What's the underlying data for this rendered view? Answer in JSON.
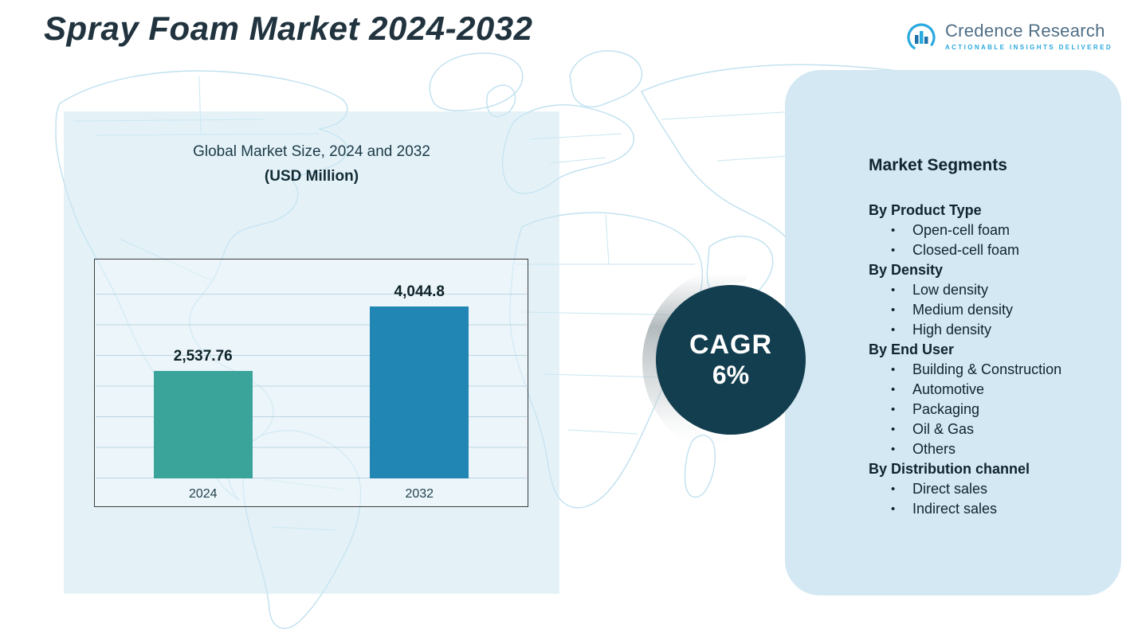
{
  "title": "Spray Foam Market 2024-2032",
  "logo": {
    "name": "Credence Research",
    "tagline": "Actionable Insights Delivered"
  },
  "chart_data": {
    "type": "bar",
    "title": "Global Market Size, 2024 and 2032",
    "subtitle": "(USD Million)",
    "categories": [
      "2024",
      "2032"
    ],
    "values": [
      2537.76,
      4044.8
    ],
    "labels": [
      "2,537.76",
      "4,044.8"
    ],
    "bar_colors": [
      "#3aa49b",
      "#2286b5"
    ],
    "ylim": [
      0,
      4500
    ],
    "grid": true,
    "legend": "none"
  },
  "cagr": {
    "label": "CAGR",
    "value": "6%"
  },
  "segments": {
    "heading": "Market Segments",
    "groups": [
      {
        "label": "By Product Type",
        "items": [
          "Open-cell foam",
          "Closed-cell foam"
        ]
      },
      {
        "label": "By Density",
        "items": [
          "Low density",
          "Medium density",
          "High density"
        ]
      },
      {
        "label": "By End User",
        "items": [
          "Building & Construction",
          "Automotive",
          "Packaging",
          "Oil & Gas",
          "Others"
        ]
      },
      {
        "label": "By Distribution channel",
        "items": [
          "Direct sales",
          "Indirect sales"
        ]
      }
    ]
  },
  "colors": {
    "accent_dark_teal": "#133e4f",
    "panel_blue": "#d3e8f3",
    "map_line": "#bfe0ef",
    "bar_2024": "#3aa49b",
    "bar_2032": "#2286b5"
  }
}
